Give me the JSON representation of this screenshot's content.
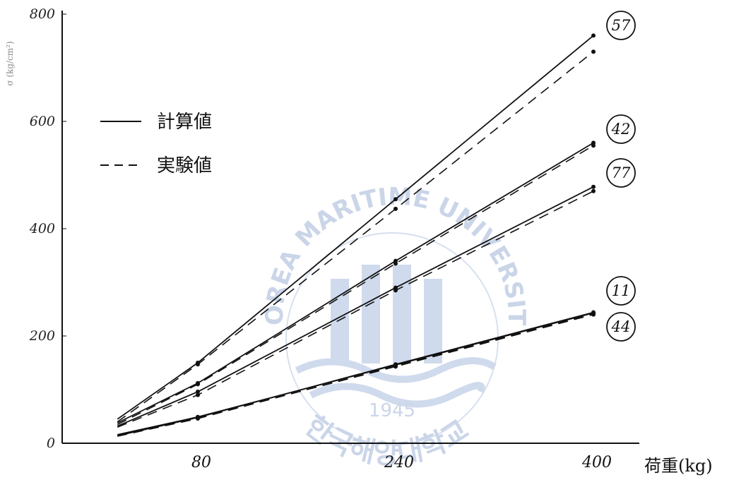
{
  "chart_data": {
    "type": "line",
    "ylabel": "σ (kg/cm²)",
    "xlabel": "荷重(kg)",
    "x_ticks": [
      "80",
      "240",
      "400"
    ],
    "y_ticks": [
      "0",
      "200",
      "400",
      "600",
      "800"
    ],
    "xlim": [
      0,
      420
    ],
    "ylim": [
      0,
      800
    ],
    "legend": {
      "position": "top-left",
      "entries": [
        {
          "label": "計算値",
          "style": "solid"
        },
        {
          "label": "実験値",
          "style": "dashed"
        }
      ]
    },
    "series": [
      {
        "name": "57",
        "style": "solid",
        "x": [
          0,
          80,
          240,
          400
        ],
        "y": [
          45,
          150,
          455,
          760
        ]
      },
      {
        "name": "57",
        "style": "dashed",
        "x": [
          0,
          80,
          240,
          400
        ],
        "y": [
          40,
          147,
          437,
          730
        ]
      },
      {
        "name": "42",
        "style": "solid",
        "x": [
          0,
          80,
          240,
          400
        ],
        "y": [
          38,
          112,
          340,
          560
        ]
      },
      {
        "name": "42",
        "style": "dashed",
        "x": [
          0,
          80,
          240,
          400
        ],
        "y": [
          35,
          110,
          335,
          555
        ]
      },
      {
        "name": "77",
        "style": "solid",
        "x": [
          0,
          80,
          240,
          400
        ],
        "y": [
          32,
          96,
          290,
          478
        ]
      },
      {
        "name": "77",
        "style": "dashed",
        "x": [
          0,
          80,
          240,
          400
        ],
        "y": [
          30,
          90,
          285,
          470
        ]
      },
      {
        "name": "11",
        "style": "solid",
        "x": [
          0,
          80,
          240,
          400
        ],
        "y": [
          16,
          49,
          146,
          243
        ]
      },
      {
        "name": "11",
        "style": "dashed",
        "x": [
          0,
          80,
          240,
          400
        ],
        "y": [
          15,
          47,
          143,
          240
        ]
      },
      {
        "name": "44",
        "style": "solid",
        "x": [
          0,
          80,
          240,
          400
        ],
        "y": [
          14,
          48,
          147,
          244
        ]
      },
      {
        "name": "44",
        "style": "dashed",
        "x": [
          0,
          80,
          240,
          400
        ],
        "y": [
          13,
          46,
          144,
          241
        ]
      }
    ],
    "series_labels": [
      "57",
      "42",
      "77",
      "11",
      "44"
    ],
    "grid": false
  },
  "watermark": {
    "arc_text": "KOREA MARITIME UNIVERSITY",
    "year": "1945",
    "bottom_text": "한국해양대학교"
  }
}
